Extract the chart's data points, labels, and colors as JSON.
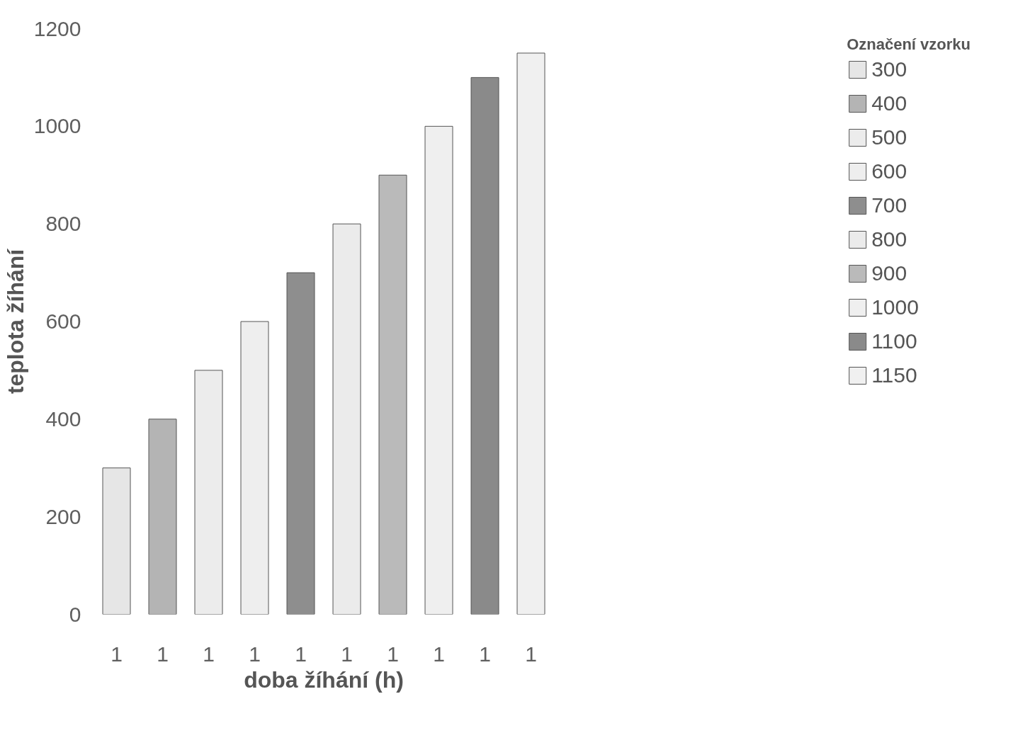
{
  "chart_data": {
    "type": "bar",
    "xlabel": "doba žíhání (h)",
    "ylabel": "teplota žíhání",
    "legend_title": "Označení vzorku",
    "legend": "right",
    "categories": [
      "1",
      "1",
      "1",
      "1",
      "1",
      "1",
      "1",
      "1",
      "1",
      "1"
    ],
    "ylim": [
      0,
      1200
    ],
    "yticks": [
      0,
      200,
      400,
      600,
      800,
      1000,
      1200
    ],
    "grid": false,
    "series": [
      {
        "name": "300",
        "color": "#e6e6e6",
        "values": [
          300,
          null,
          null,
          null,
          null,
          null,
          null,
          null,
          null,
          null
        ]
      },
      {
        "name": "400",
        "color": "#b4b4b4",
        "values": [
          null,
          400,
          null,
          null,
          null,
          null,
          null,
          null,
          null,
          null
        ]
      },
      {
        "name": "500",
        "color": "#ececec",
        "values": [
          null,
          null,
          500,
          null,
          null,
          null,
          null,
          null,
          null,
          null
        ]
      },
      {
        "name": "600",
        "color": "#eeeeee",
        "values": [
          null,
          null,
          null,
          600,
          null,
          null,
          null,
          null,
          null,
          null
        ]
      },
      {
        "name": "700",
        "color": "#8e8e8e",
        "values": [
          null,
          null,
          null,
          null,
          700,
          null,
          null,
          null,
          null,
          null
        ]
      },
      {
        "name": "800",
        "color": "#ebebeb",
        "values": [
          null,
          null,
          null,
          null,
          null,
          800,
          null,
          null,
          null,
          null
        ]
      },
      {
        "name": "900",
        "color": "#bababa",
        "values": [
          null,
          null,
          null,
          null,
          null,
          null,
          900,
          null,
          null,
          null
        ]
      },
      {
        "name": "1000",
        "color": "#efefef",
        "values": [
          null,
          null,
          null,
          null,
          null,
          null,
          null,
          1000,
          null,
          null
        ]
      },
      {
        "name": "1100",
        "color": "#8a8a8a",
        "values": [
          null,
          null,
          null,
          null,
          null,
          null,
          null,
          null,
          1100,
          null
        ]
      },
      {
        "name": "1150",
        "color": "#f0f0f0",
        "values": [
          null,
          null,
          null,
          null,
          null,
          null,
          null,
          null,
          null,
          1150
        ]
      }
    ]
  }
}
